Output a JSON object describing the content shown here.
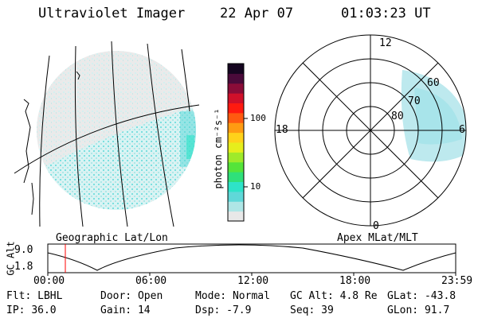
{
  "header": {
    "instrument": "Ultraviolet Imager",
    "date": "22 Apr 07",
    "time": "01:03:23 UT"
  },
  "colorbar": {
    "unit_label": "photon cm⁻²s⁻¹",
    "ticks": [
      "100",
      "10"
    ],
    "colors": [
      "#e8e8e8",
      "#aee6e6",
      "#5fd8d8",
      "#2ee3c8",
      "#2fe07a",
      "#55e43a",
      "#9fea2a",
      "#e6ee1c",
      "#ffd21a",
      "#ff9b12",
      "#ff5a10",
      "#ff1a10",
      "#d0102a",
      "#8a0c38",
      "#4a0a3a",
      "#150520"
    ]
  },
  "geo_panel": {
    "label": "Geographic Lat/Lon"
  },
  "apex_panel": {
    "label": "Apex MLat/MLT",
    "mlt_labels": {
      "top": "12",
      "bottom": "0",
      "left": "18",
      "right": "6"
    },
    "lat_labels": [
      "60",
      "70",
      "80"
    ]
  },
  "gc_alt_plot": {
    "axis_label": "GC Alt",
    "y_ticks": [
      "9.0",
      "1.8"
    ],
    "x_ticks": [
      "00:00",
      "06:00",
      "12:00",
      "18:00",
      "23:59"
    ],
    "marker_color": "#ff0000"
  },
  "footer": {
    "row1": [
      {
        "key": "Flt:",
        "value": "LBHL"
      },
      {
        "key": "Door:",
        "value": "Open"
      },
      {
        "key": "Mode:",
        "value": "Normal"
      },
      {
        "key": "GC Alt:",
        "value": "4.8 Re"
      },
      {
        "key": "GLat:",
        "value": "-43.8"
      }
    ],
    "row2": [
      {
        "key": "IP:",
        "value": "36.0"
      },
      {
        "key": "Gain:",
        "value": "14"
      },
      {
        "key": "Dsp:",
        "value": "-7.9"
      },
      {
        "key": "Seq:",
        "value": "39"
      },
      {
        "key": "GLon:",
        "value": "91.7"
      }
    ]
  }
}
